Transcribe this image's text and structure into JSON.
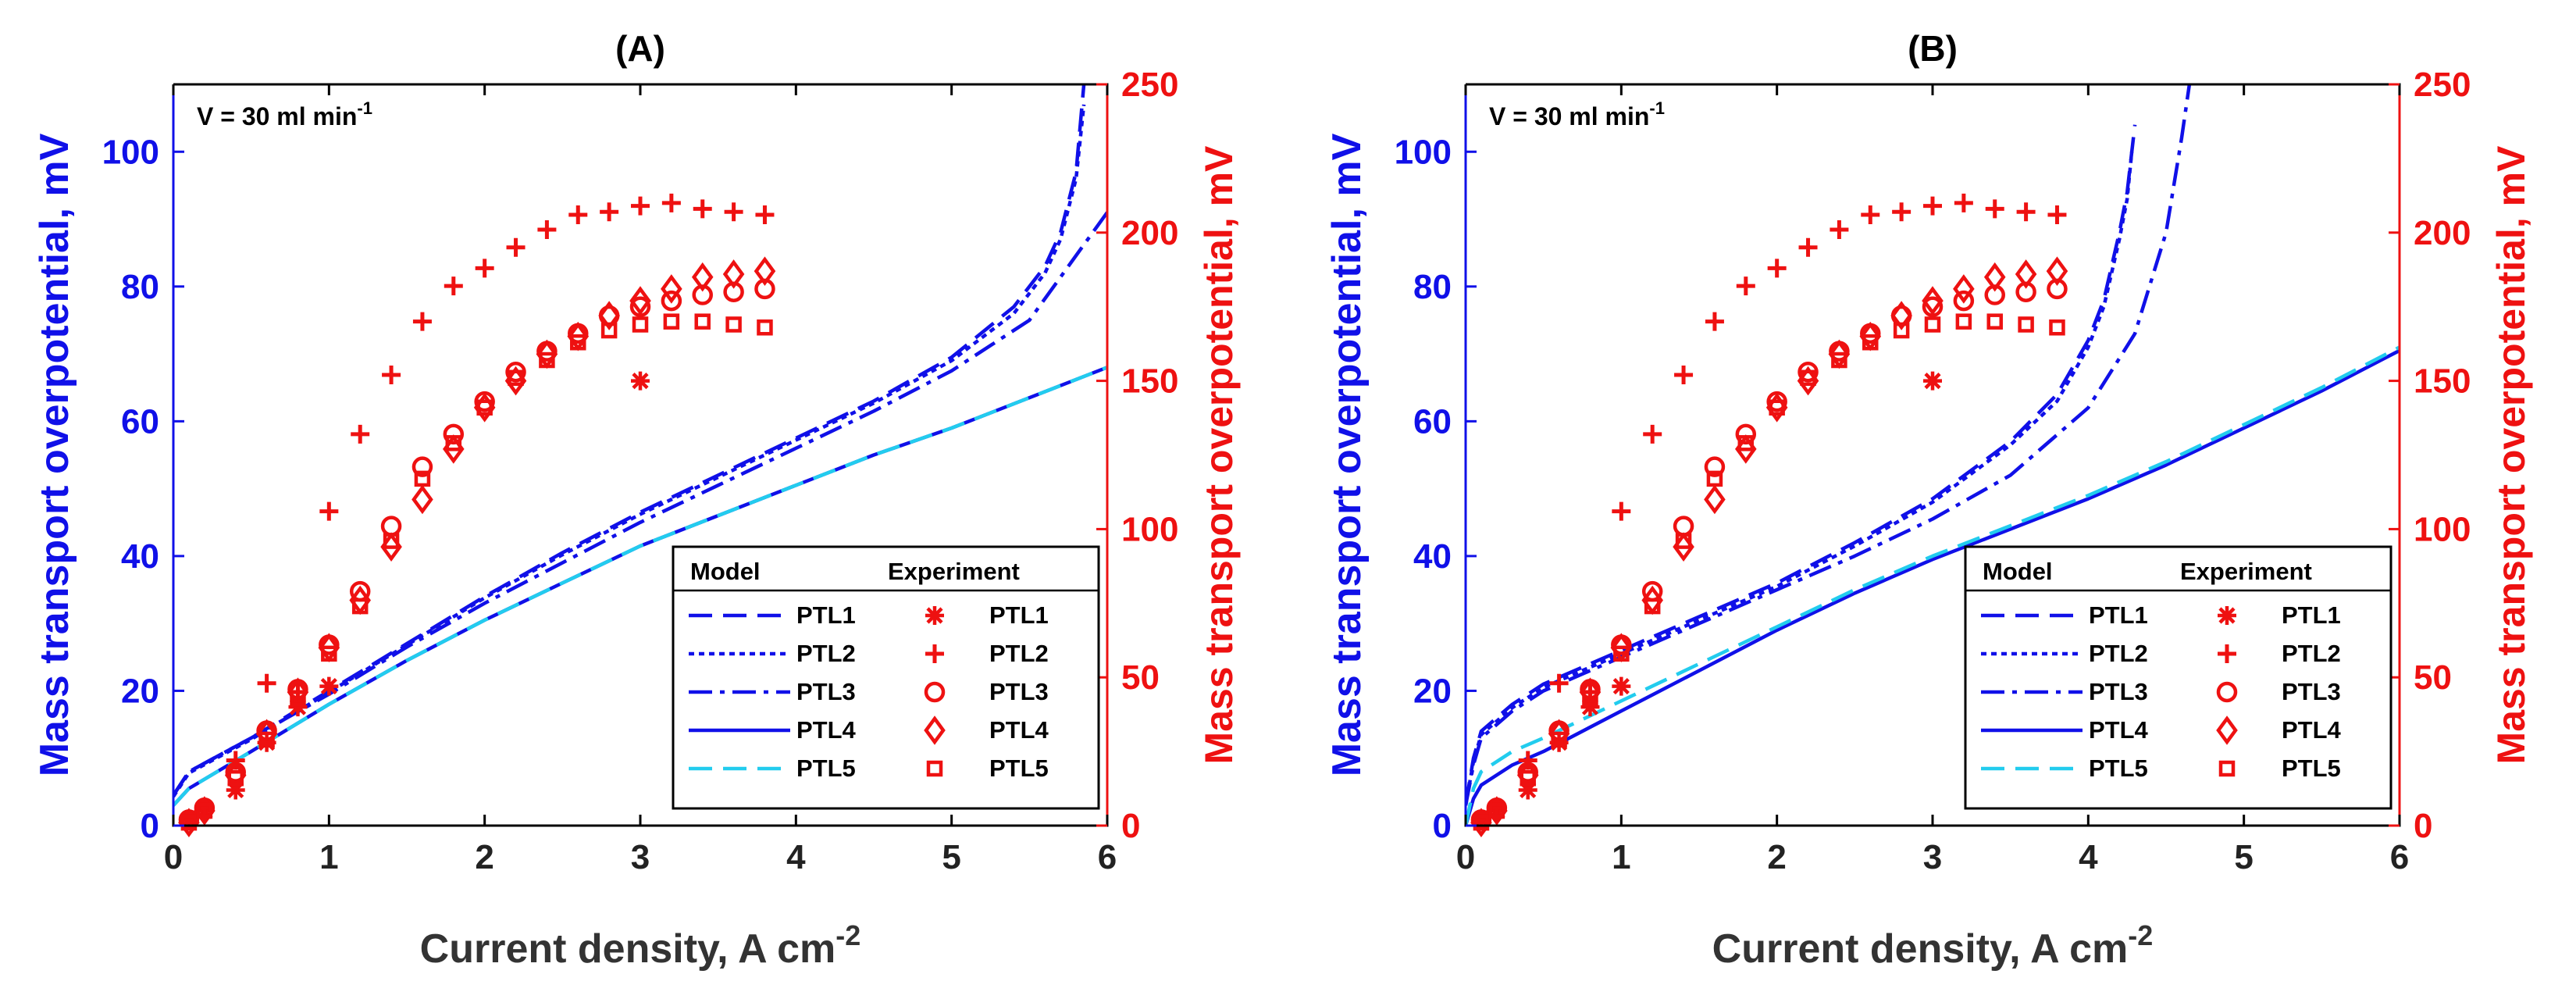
{
  "figure": {
    "legend_header_model": "Model",
    "legend_header_experiment": "Experiment"
  },
  "chart_data": [
    {
      "type": "line",
      "title": "(A)",
      "annotation": {
        "text": "V = 30 ml min",
        "sup": "-1"
      },
      "xlabel": {
        "text": "Current density, A cm",
        "sup": "-2"
      },
      "ylabel": "Mass transport overpotential, mV",
      "ylabel_right": "Mass transport overpotential, mV",
      "xlim": [
        0,
        6
      ],
      "ylim": [
        0,
        110
      ],
      "ylim_right": [
        0,
        250
      ],
      "xticks": [
        "0",
        "1",
        "2",
        "3",
        "4",
        "5",
        "6"
      ],
      "yticks": [
        "0",
        "20",
        "40",
        "60",
        "80",
        "100"
      ],
      "yticks_right": [
        "0",
        "50",
        "100",
        "150",
        "200",
        "250"
      ],
      "series_colors": {
        "model_blue": "#1010e8",
        "model_cyan": "#22ccee",
        "experiment": "#ee1111"
      },
      "model_series": [
        {
          "name": "PTL1",
          "style": "dashed",
          "color": "#1010e8",
          "x": [
            0,
            0.1,
            0.5,
            1,
            1.5,
            2,
            2.5,
            3,
            3.5,
            4,
            4.5,
            5,
            5.4,
            5.6,
            5.7,
            5.8,
            5.85
          ],
          "y": [
            4.5,
            8,
            13,
            20,
            27,
            34,
            40.5,
            46.5,
            52,
            57.5,
            63,
            69.5,
            77,
            83,
            88,
            97,
            110
          ]
        },
        {
          "name": "PTL2",
          "style": "dotted",
          "color": "#1010e8",
          "x": [
            0,
            0.1,
            0.5,
            1,
            1.5,
            2,
            2.5,
            3,
            3.5,
            4,
            4.5,
            5,
            5.4,
            5.6,
            5.7,
            5.8,
            5.85
          ],
          "y": [
            4.3,
            7.8,
            12.8,
            19.8,
            26.8,
            33.8,
            40.2,
            46.2,
            51.7,
            57.2,
            62.7,
            69,
            76,
            82,
            87,
            96,
            107
          ]
        },
        {
          "name": "PTL3",
          "style": "dashdot",
          "color": "#1010e8",
          "x": [
            0,
            0.1,
            0.5,
            1,
            1.5,
            2,
            2.5,
            3,
            3.5,
            4,
            4.5,
            5,
            5.5,
            6
          ],
          "y": [
            4.5,
            8,
            13,
            19.5,
            26.5,
            33,
            39,
            45,
            50.5,
            56,
            61.5,
            67.5,
            75,
            91
          ]
        },
        {
          "name": "PTL4",
          "style": "solid",
          "color": "#1010e8",
          "x": [
            0,
            0.1,
            0.5,
            1,
            1.5,
            2,
            2.5,
            3,
            3.5,
            4,
            4.5,
            5,
            5.5,
            6
          ],
          "y": [
            3,
            5.5,
            11,
            18,
            24.5,
            30.5,
            36,
            41.5,
            46,
            50.5,
            55,
            59,
            63.5,
            68
          ]
        },
        {
          "name": "PTL5",
          "style": "dashed",
          "color": "#22ccee",
          "x": [
            0,
            0.1,
            0.5,
            1,
            1.5,
            2,
            2.5,
            3,
            3.5,
            4,
            4.5,
            5,
            5.5,
            6
          ],
          "y": [
            3,
            5.5,
            11,
            18,
            24.5,
            30.5,
            36,
            41.5,
            46,
            50.5,
            55,
            59,
            63.5,
            68
          ]
        }
      ],
      "experiment_series": [
        {
          "name": "PTL1",
          "marker": "asterisk",
          "x": [
            0.1,
            0.2,
            0.4,
            0.6,
            0.8,
            1.0,
            3.0
          ],
          "y": [
            2,
            5,
            12,
            28,
            40,
            47,
            150
          ]
        },
        {
          "name": "PTL2",
          "marker": "plus",
          "x": [
            0.1,
            0.2,
            0.4,
            0.6,
            0.8,
            1.0,
            1.2,
            1.4,
            1.6,
            1.8,
            2.0,
            2.2,
            2.4,
            2.6,
            2.8,
            3.0,
            3.2,
            3.4,
            3.6,
            3.8
          ],
          "y": [
            2,
            6,
            22,
            48,
            45,
            106,
            132,
            152,
            170,
            182,
            188,
            195,
            201,
            206,
            207,
            209,
            210,
            208,
            207,
            206
          ]
        },
        {
          "name": "PTL3",
          "marker": "circle",
          "x": [
            0.1,
            0.2,
            0.4,
            0.6,
            0.8,
            1.0,
            1.2,
            1.4,
            1.6,
            1.8,
            2.0,
            2.2,
            2.4,
            2.6,
            2.8,
            3.0,
            3.2,
            3.4,
            3.6,
            3.8
          ],
          "y": [
            2,
            6,
            18,
            32,
            46,
            61,
            79,
            101,
            121,
            132,
            143,
            153,
            160,
            166,
            172,
            175,
            177,
            179,
            180,
            181
          ]
        },
        {
          "name": "PTL4",
          "marker": "diamond",
          "x": [
            0.1,
            0.2,
            0.4,
            0.6,
            0.8,
            1.0,
            1.2,
            1.4,
            1.6,
            1.8,
            2.0,
            2.2,
            2.4,
            2.6,
            2.8,
            3.0,
            3.2,
            3.4,
            3.6,
            3.8
          ],
          "y": [
            1,
            5,
            17,
            31,
            45,
            60,
            76,
            94,
            110,
            127,
            141,
            150,
            159,
            165,
            172,
            177,
            181,
            185,
            186,
            187
          ]
        },
        {
          "name": "PTL5",
          "marker": "square",
          "x": [
            0.1,
            0.2,
            0.4,
            0.6,
            0.8,
            1.0,
            1.2,
            1.4,
            1.6,
            1.8,
            2.0,
            2.2,
            2.4,
            2.6,
            2.8,
            3.0,
            3.2,
            3.4,
            3.6,
            3.8
          ],
          "y": [
            1,
            5,
            16,
            29,
            43,
            58,
            74,
            96,
            117,
            129,
            141,
            151,
            157,
            163,
            167,
            169,
            170,
            170,
            169,
            168
          ]
        }
      ]
    },
    {
      "type": "line",
      "title": "(B)",
      "annotation": {
        "text": "V = 30 ml min",
        "sup": "-1"
      },
      "xlabel": {
        "text": "Current density, A cm",
        "sup": "-2"
      },
      "ylabel": "Mass transport overpotential, mV",
      "ylabel_right": "Mass transport overpotential, mV",
      "xlim": [
        0,
        6
      ],
      "ylim": [
        0,
        110
      ],
      "ylim_right": [
        0,
        250
      ],
      "xticks": [
        "0",
        "1",
        "2",
        "3",
        "4",
        "5",
        "6"
      ],
      "yticks": [
        "0",
        "20",
        "40",
        "60",
        "80",
        "100"
      ],
      "yticks_right": [
        "0",
        "50",
        "100",
        "150",
        "200",
        "250"
      ],
      "series_colors": {
        "model_blue": "#1010e8",
        "model_cyan": "#22ccee",
        "experiment": "#ee1111"
      },
      "model_series": [
        {
          "name": "PTL1",
          "style": "dashed",
          "color": "#1010e8",
          "x": [
            0,
            0.05,
            0.1,
            0.3,
            0.5,
            1,
            1.5,
            2,
            2.5,
            3,
            3.5,
            3.8,
            4.0,
            4.1,
            4.2,
            4.25,
            4.3
          ],
          "y": [
            3,
            10,
            14,
            18,
            21,
            26,
            31,
            36,
            42,
            48.5,
            57,
            64,
            72,
            78,
            88,
            94,
            104
          ]
        },
        {
          "name": "PTL2",
          "style": "dotted",
          "color": "#1010e8",
          "x": [
            0,
            0.05,
            0.1,
            0.3,
            0.5,
            1,
            1.5,
            2,
            2.5,
            3,
            3.5,
            3.8,
            4.0,
            4.1,
            4.2,
            4.25,
            4.28
          ],
          "y": [
            3,
            9.5,
            13.5,
            17.5,
            20.5,
            25.5,
            30.5,
            35.5,
            41.5,
            48,
            56.5,
            63,
            71,
            77,
            87,
            93,
            100
          ]
        },
        {
          "name": "PTL3",
          "style": "dashdot",
          "color": "#1010e8",
          "x": [
            0,
            0.05,
            0.1,
            0.3,
            0.5,
            1,
            1.5,
            2,
            2.5,
            3,
            3.5,
            4.0,
            4.3,
            4.5,
            4.6,
            4.65
          ],
          "y": [
            3,
            9,
            13,
            17,
            20,
            25,
            30,
            35,
            40,
            45.5,
            52,
            62,
            73,
            88,
            102,
            110
          ]
        },
        {
          "name": "PTL4",
          "style": "solid",
          "color": "#1010e8",
          "x": [
            0,
            0.05,
            0.1,
            0.3,
            0.5,
            1,
            1.5,
            2,
            2.5,
            3,
            3.5,
            4,
            4.5,
            5,
            5.5,
            6
          ],
          "y": [
            0,
            4,
            6,
            9,
            11,
            17,
            23,
            29,
            34.5,
            39.5,
            44,
            48.5,
            53.5,
            59,
            64.5,
            70.5
          ]
        },
        {
          "name": "PTL5",
          "style": "dashed",
          "color": "#22ccee",
          "x": [
            0,
            0.05,
            0.1,
            0.3,
            0.5,
            1,
            1.5,
            2,
            2.5,
            3,
            3.5,
            4,
            4.5,
            5,
            5.5,
            6
          ],
          "y": [
            0,
            5.5,
            8,
            11,
            13,
            18.5,
            24,
            29.5,
            35,
            40,
            44.5,
            49,
            54,
            59.5,
            65,
            71
          ]
        }
      ],
      "experiment_series": [
        {
          "name": "PTL1",
          "marker": "asterisk",
          "x": [
            0.1,
            0.2,
            0.4,
            0.6,
            0.8,
            1.0,
            3.0
          ],
          "y": [
            2,
            5,
            12,
            28,
            40,
            47,
            150
          ]
        },
        {
          "name": "PTL2",
          "marker": "plus",
          "x": [
            0.1,
            0.2,
            0.4,
            0.6,
            0.8,
            1.0,
            1.2,
            1.4,
            1.6,
            1.8,
            2.0,
            2.2,
            2.4,
            2.6,
            2.8,
            3.0,
            3.2,
            3.4,
            3.6,
            3.8
          ],
          "y": [
            2,
            6,
            22,
            48,
            45,
            106,
            132,
            152,
            170,
            182,
            188,
            195,
            201,
            206,
            207,
            209,
            210,
            208,
            207,
            206
          ]
        },
        {
          "name": "PTL3",
          "marker": "circle",
          "x": [
            0.1,
            0.2,
            0.4,
            0.6,
            0.8,
            1.0,
            1.2,
            1.4,
            1.6,
            1.8,
            2.0,
            2.2,
            2.4,
            2.6,
            2.8,
            3.0,
            3.2,
            3.4,
            3.6,
            3.8
          ],
          "y": [
            2,
            6,
            18,
            32,
            46,
            61,
            79,
            101,
            121,
            132,
            143,
            153,
            160,
            166,
            172,
            175,
            177,
            179,
            180,
            181
          ]
        },
        {
          "name": "PTL4",
          "marker": "diamond",
          "x": [
            0.1,
            0.2,
            0.4,
            0.6,
            0.8,
            1.0,
            1.2,
            1.4,
            1.6,
            1.8,
            2.0,
            2.2,
            2.4,
            2.6,
            2.8,
            3.0,
            3.2,
            3.4,
            3.6,
            3.8
          ],
          "y": [
            1,
            5,
            17,
            31,
            45,
            60,
            76,
            94,
            110,
            127,
            141,
            150,
            159,
            165,
            172,
            177,
            181,
            185,
            186,
            187
          ]
        },
        {
          "name": "PTL5",
          "marker": "square",
          "x": [
            0.1,
            0.2,
            0.4,
            0.6,
            0.8,
            1.0,
            1.2,
            1.4,
            1.6,
            1.8,
            2.0,
            2.2,
            2.4,
            2.6,
            2.8,
            3.0,
            3.2,
            3.4,
            3.6,
            3.8
          ],
          "y": [
            1,
            5,
            16,
            29,
            43,
            58,
            74,
            96,
            117,
            129,
            141,
            151,
            157,
            163,
            167,
            169,
            170,
            170,
            169,
            168
          ]
        }
      ]
    }
  ]
}
